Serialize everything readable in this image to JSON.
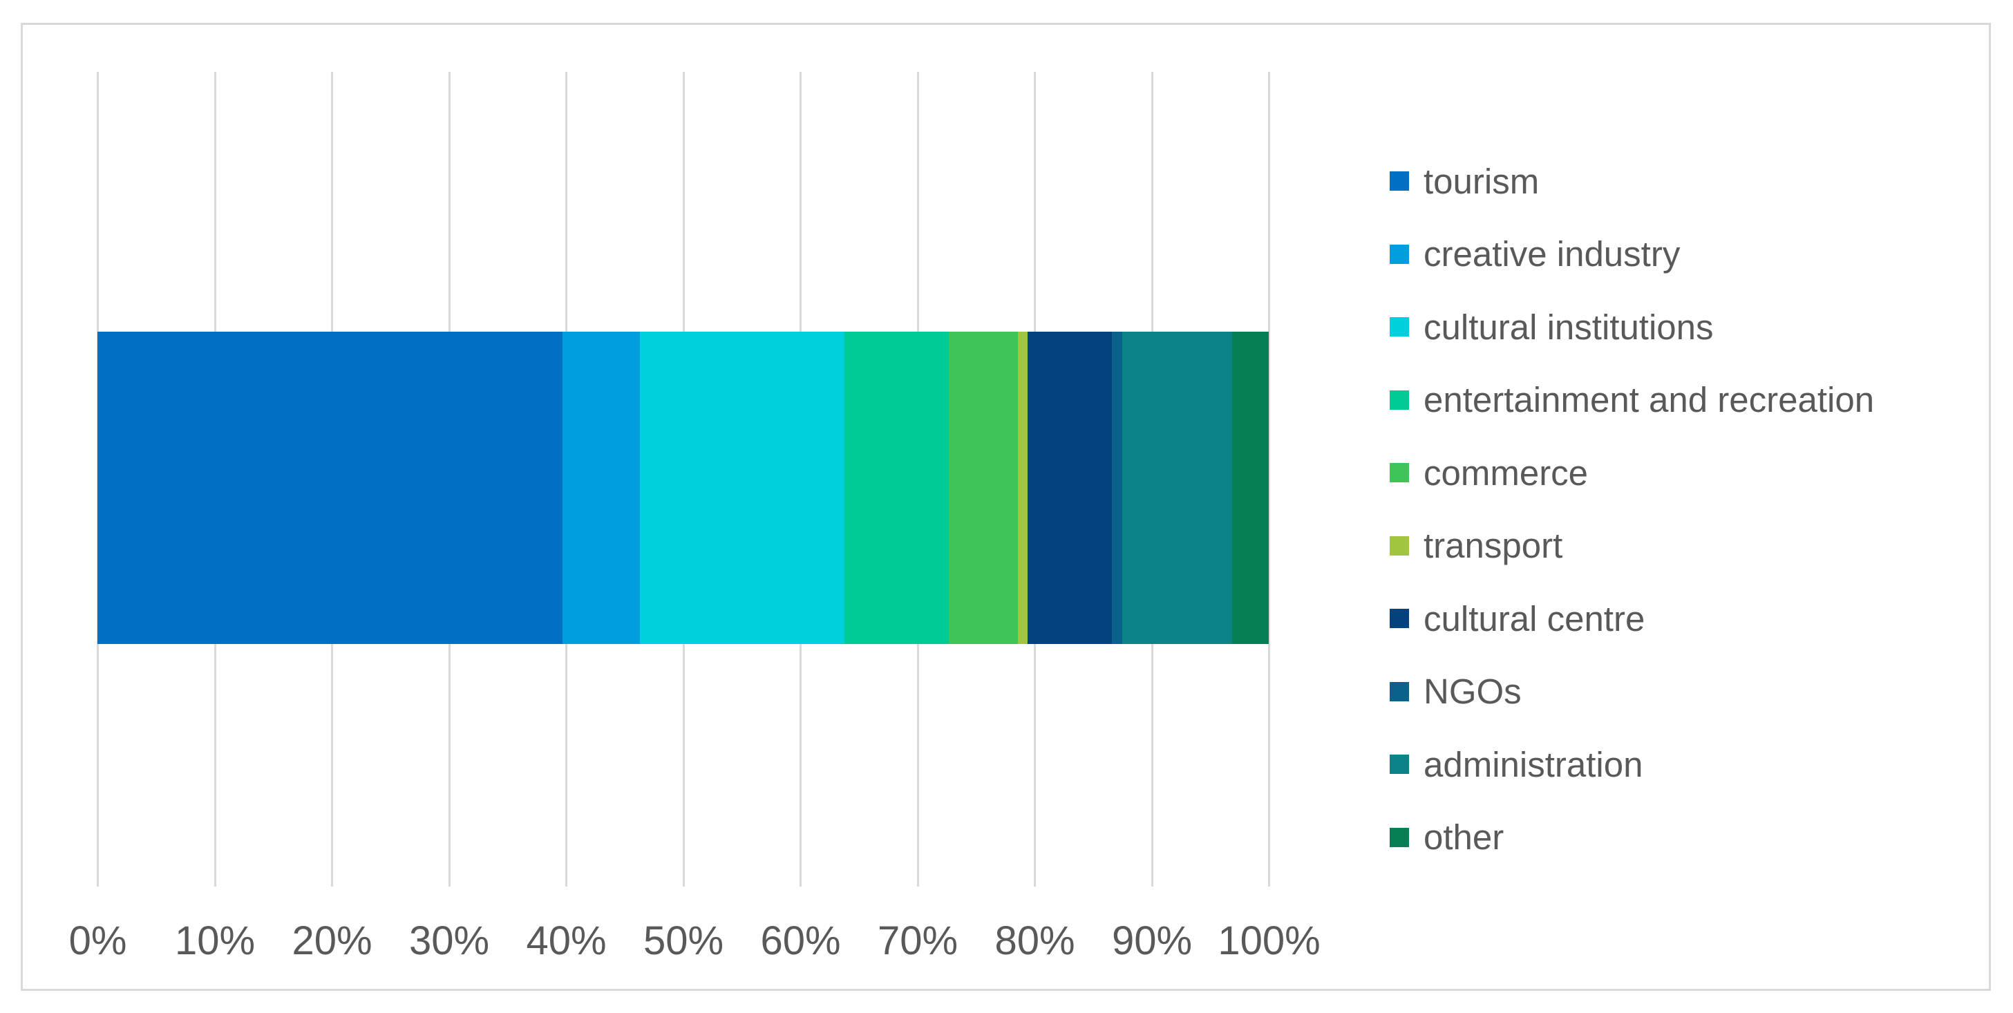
{
  "chart_data": {
    "type": "bar",
    "subtype": "100-percent-stacked-horizontal",
    "title": "",
    "xlabel": "",
    "ylabel": "",
    "xlim": [
      0,
      100
    ],
    "x_ticks": [
      "0%",
      "10%",
      "20%",
      "30%",
      "40%",
      "50%",
      "60%",
      "70%",
      "80%",
      "90%",
      "100%"
    ],
    "grid": true,
    "legend_position": "right",
    "series": [
      {
        "name": "tourism",
        "value": 39.7,
        "color": "#0070C4"
      },
      {
        "name": "creative industry",
        "value": 6.6,
        "color": "#009EDE"
      },
      {
        "name": "cultural institutions",
        "value": 17.5,
        "color": "#00D0DC"
      },
      {
        "name": "entertainment and recreation",
        "value": 8.9,
        "color": "#00CB95"
      },
      {
        "name": "commerce",
        "value": 5.9,
        "color": "#3EC557"
      },
      {
        "name": "transport",
        "value": 0.8,
        "color": "#A2C53F"
      },
      {
        "name": "cultural centre",
        "value": 7.2,
        "color": "#03427C"
      },
      {
        "name": "NGOs",
        "value": 0.9,
        "color": "#09618C"
      },
      {
        "name": "administration",
        "value": 9.4,
        "color": "#0B8387"
      },
      {
        "name": "other",
        "value": 3.1,
        "color": "#067F54"
      }
    ]
  },
  "style": {
    "background": "#FFFFFF",
    "grid_color": "#D9D9D9",
    "border_color": "#D9D9D9",
    "text_color": "#595959"
  }
}
